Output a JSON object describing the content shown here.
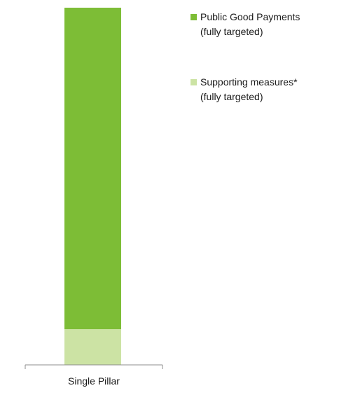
{
  "chart_data": {
    "type": "bar",
    "stacked": true,
    "categories": [
      "Single Pillar"
    ],
    "series": [
      {
        "name": "Supporting measures* (fully targeted)",
        "name_lines": [
          "Supporting measures*",
          "(fully targeted)"
        ],
        "values": [
          10
        ],
        "color": "#cce3a4"
      },
      {
        "name": "Public Good Payments (fully targeted)",
        "name_lines": [
          "Public Good Payments",
          "(fully targeted)"
        ],
        "values": [
          90
        ],
        "color": "#7dbd36"
      }
    ],
    "title": "",
    "xlabel": "",
    "ylabel": "",
    "ylim": [
      0,
      100
    ],
    "grid": false,
    "legend_position": "top-right",
    "legend_order": [
      1,
      0
    ]
  }
}
